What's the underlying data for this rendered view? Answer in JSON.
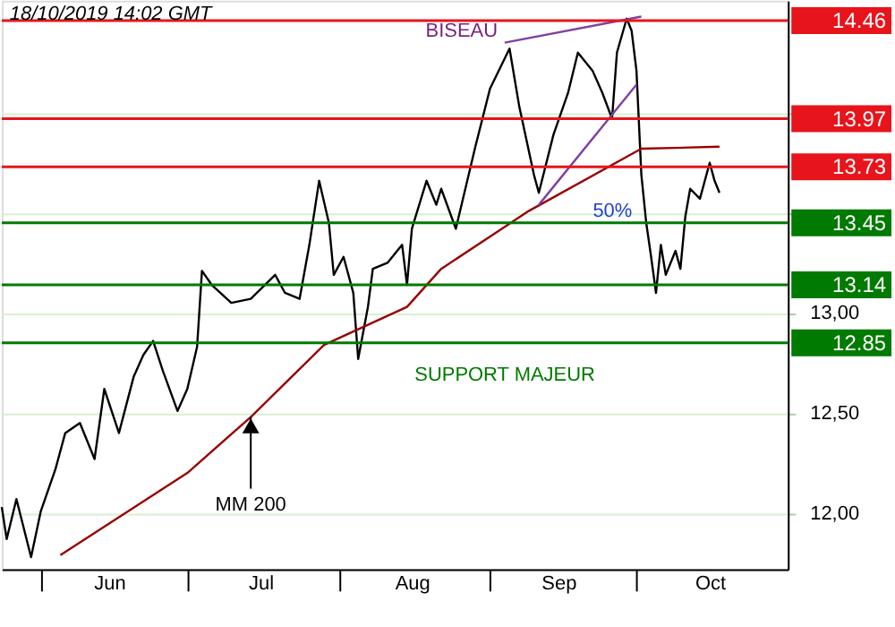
{
  "chart_data": {
    "type": "line",
    "x": [
      "2019-05-24",
      "2019-05-25",
      "2019-05-27",
      "2019-05-30",
      "2019-06-01",
      "2019-06-04",
      "2019-06-06",
      "2019-06-09",
      "2019-06-12",
      "2019-06-14",
      "2019-06-17",
      "2019-06-20",
      "2019-06-22",
      "2019-06-24",
      "2019-06-26",
      "2019-06-29",
      "2019-07-01",
      "2019-07-03",
      "2019-07-04",
      "2019-07-06",
      "2019-07-10",
      "2019-07-14",
      "2019-07-19",
      "2019-07-21",
      "2019-07-24",
      "2019-07-26",
      "2019-07-28",
      "2019-07-30",
      "2019-07-31",
      "2019-08-02",
      "2019-08-04",
      "2019-08-05",
      "2019-08-07",
      "2019-08-08",
      "2019-08-11",
      "2019-08-14",
      "2019-08-15",
      "2019-08-16",
      "2019-08-19",
      "2019-08-21",
      "2019-08-22",
      "2019-08-25",
      "2019-08-29",
      "2019-09-01",
      "2019-09-05",
      "2019-09-07",
      "2019-09-10",
      "2019-09-11",
      "2019-09-14",
      "2019-09-17",
      "2019-09-19",
      "2019-09-22",
      "2019-09-24",
      "2019-09-26",
      "2019-09-27",
      "2019-09-29",
      "2019-09-30",
      "2019-10-01",
      "2019-10-02",
      "2019-10-03",
      "2019-10-04",
      "2019-10-05",
      "2019-10-06",
      "2019-10-07",
      "2019-10-09",
      "2019-10-10",
      "2019-10-11",
      "2019-10-12",
      "2019-10-14",
      "2019-10-16",
      "2019-10-17",
      "2019-10-18"
    ],
    "series": [
      {
        "color": "#000000",
        "values": [
          12.03,
          11.87,
          12.07,
          11.78,
          12.01,
          12.22,
          12.4,
          12.45,
          12.27,
          12.62,
          12.4,
          12.68,
          12.79,
          12.86,
          12.71,
          12.51,
          12.62,
          12.83,
          13.21,
          13.14,
          13.05,
          13.07,
          13.19,
          13.1,
          13.07,
          13.34,
          13.66,
          13.45,
          13.19,
          13.28,
          13.1,
          12.77,
          13.03,
          13.22,
          13.25,
          13.34,
          13.14,
          13.42,
          13.66,
          13.54,
          13.62,
          13.42,
          13.83,
          14.12,
          14.32,
          14.03,
          13.69,
          13.6,
          13.89,
          14.1,
          14.3,
          14.21,
          14.1,
          13.97,
          14.3,
          14.47,
          14.41,
          14.21,
          13.69,
          13.45,
          13.28,
          13.1,
          13.34,
          13.19,
          13.31,
          13.22,
          13.48,
          13.62,
          13.57,
          13.75,
          13.66,
          13.6
        ]
      },
      {
        "color": "#990000",
        "x": [
          "2019-06-05",
          "2019-07-01",
          "2019-07-14",
          "2019-07-29",
          "2019-08-15",
          "2019-08-22",
          "2019-09-09",
          "2019-10-02",
          "2019-10-18"
        ],
        "values": [
          11.79,
          12.2,
          12.48,
          12.84,
          13.03,
          13.22,
          13.51,
          13.82,
          13.83
        ]
      },
      {
        "color": "#8040a0",
        "x": [
          "2019-09-04",
          "2019-10-02"
        ],
        "values": [
          14.35,
          14.48
        ]
      },
      {
        "color": "#8040a0",
        "x": [
          "2019-09-11",
          "2019-10-01"
        ],
        "values": [
          13.54,
          14.14
        ]
      }
    ],
    "xlim": [
      "2019-05-24",
      "2019-11-01"
    ],
    "xticks": [
      {
        "value": "2019-06-01",
        "label": null
      },
      {
        "value": "2019-06-15",
        "label": "Jun"
      },
      {
        "value": "2019-07-01",
        "label": null
      },
      {
        "value": "2019-07-16",
        "label": "Jul"
      },
      {
        "value": "2019-08-01",
        "label": null
      },
      {
        "value": "2019-08-16",
        "label": "Aug"
      },
      {
        "value": "2019-09-01",
        "label": null
      },
      {
        "value": "2019-09-15",
        "label": "Sep"
      },
      {
        "value": "2019-10-01",
        "label": null
      },
      {
        "value": "2019-10-16",
        "label": "Oct"
      }
    ],
    "ylim": [
      11.72,
      14.56
    ],
    "yticks": [
      {
        "value": 12,
        "label": "12,00"
      },
      {
        "value": 12.5,
        "label": "12,50"
      },
      {
        "value": 13,
        "label": "13,00"
      },
      {
        "value": 13.5,
        "label": null
      },
      {
        "value": 14,
        "label": null
      }
    ],
    "grid": "y",
    "ref_lines": [
      {
        "axis": "y",
        "value": 14.46,
        "label": "14.46",
        "color": "#e8141b"
      },
      {
        "axis": "y",
        "value": 13.97,
        "label": "13.97",
        "color": "#e8141b"
      },
      {
        "axis": "y",
        "value": 13.73,
        "label": "13.73",
        "color": "#e8141b"
      },
      {
        "axis": "y",
        "value": 13.45,
        "label": "13.45",
        "color": "#007a00"
      },
      {
        "axis": "y",
        "value": 13.14,
        "label": "13.14",
        "color": "#007a00"
      },
      {
        "axis": "y",
        "value": 12.85,
        "label": "12.85",
        "color": "#007a00"
      }
    ],
    "annotations": [
      "18/10/2019 14:02 GMT",
      "BISEAU",
      "50%",
      "SUPPORT MAJEUR",
      {
        "text": "MM 200",
        "x": "2019-07-14",
        "y": 12.48
      }
    ]
  }
}
